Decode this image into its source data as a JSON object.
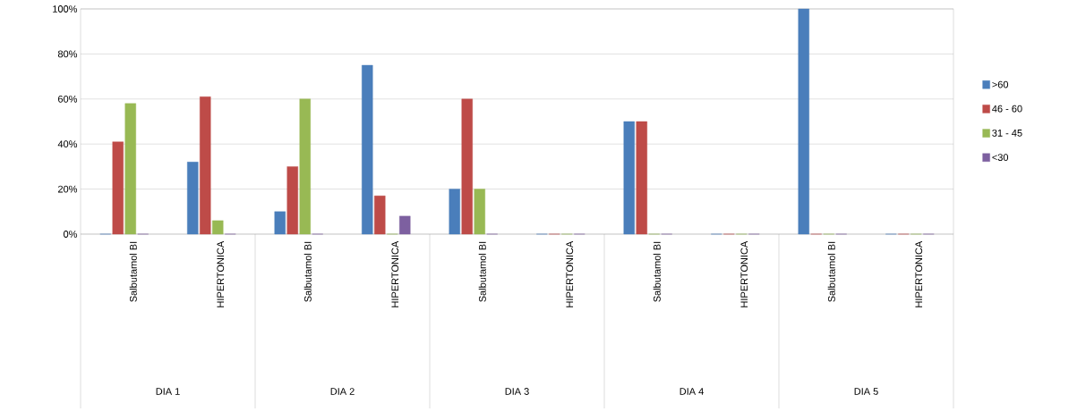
{
  "chart_data": {
    "type": "bar",
    "categories": [
      "Salbutamol BI",
      "HIPERTONICA",
      "Salbutamol BI",
      "HIPERTONICA",
      "Salbutamol BI",
      "HIPERTONICA",
      "Salbutamol BI",
      "HIPERTONICA",
      "Salbutamol BI",
      "HIPERTONICA"
    ],
    "series": [
      {
        "name": ">60",
        "color": "#4a7ebb",
        "values": [
          0,
          32,
          10,
          75,
          20,
          0,
          50,
          0,
          100,
          0
        ]
      },
      {
        "name": "46 - 60",
        "color": "#be4b48",
        "values": [
          41,
          61,
          30,
          17,
          60,
          0,
          50,
          0,
          0,
          0
        ]
      },
      {
        "name": "31 - 45",
        "color": "#98b954",
        "values": [
          58,
          6,
          60,
          0,
          20,
          0,
          0,
          0,
          0,
          0
        ]
      },
      {
        "name": "<30",
        "color": "#7d60a0",
        "values": [
          0,
          0,
          0,
          8,
          0,
          0,
          0,
          0,
          0,
          0
        ]
      }
    ],
    "annotations": [
      "DIA 1",
      "DIA 2",
      "DIA 3",
      "DIA 4",
      "DIA 5"
    ],
    "ylim": [
      0,
      100
    ],
    "yticks": [
      {
        "value": 0,
        "label": "0%"
      },
      {
        "value": 20,
        "label": "20%"
      },
      {
        "value": 40,
        "label": "40%"
      },
      {
        "value": 60,
        "label": "60%"
      },
      {
        "value": 80,
        "label": "80%"
      },
      {
        "value": 100,
        "label": "100%"
      }
    ],
    "grid": "y",
    "legend": "right"
  }
}
